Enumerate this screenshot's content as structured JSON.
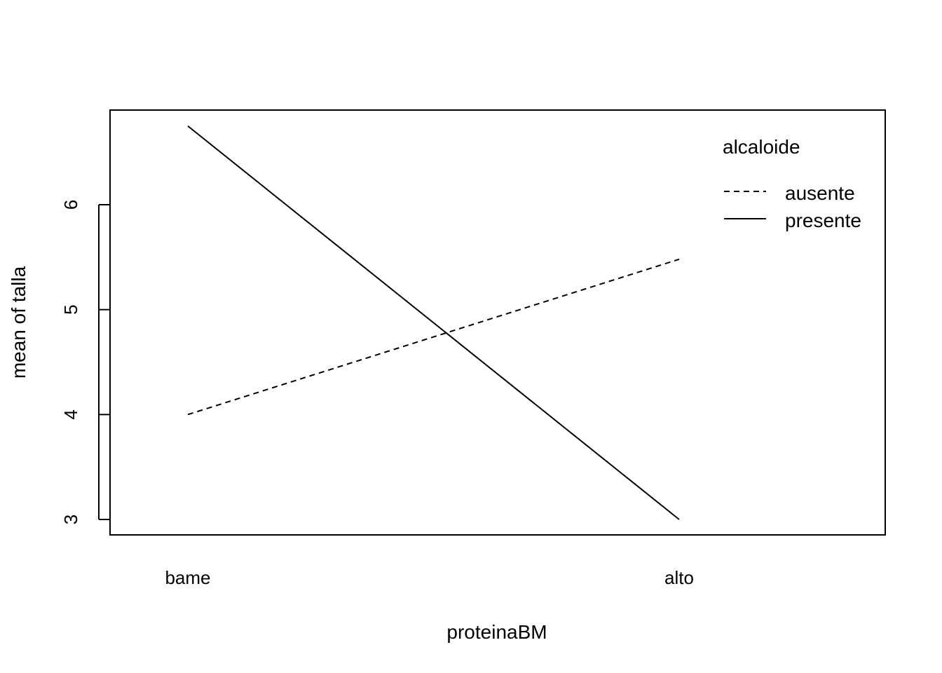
{
  "chart_data": {
    "type": "line",
    "title": "",
    "xlabel": "proteinaBM",
    "ylabel": "mean of  talla",
    "categories": [
      "bame",
      "alto"
    ],
    "ylim": [
      2.85,
      6.9
    ],
    "yticks": [
      "3",
      "4",
      "5",
      "6"
    ],
    "grid": false,
    "legend": {
      "title": "alcaloide",
      "placement": "top-right",
      "entries": [
        "ausente",
        "presente"
      ]
    },
    "series": [
      {
        "name": "ausente",
        "values": [
          4.0,
          5.48
        ],
        "line_style": "dashed"
      },
      {
        "name": "presente",
        "values": [
          6.75,
          3.0
        ],
        "line_style": "solid"
      }
    ],
    "colors": {
      "line": "#000000",
      "axis": "#000000",
      "background": "#ffffff"
    }
  }
}
